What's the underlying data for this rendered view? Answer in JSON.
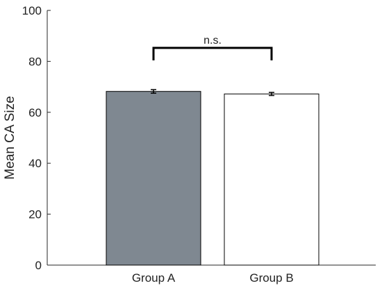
{
  "chart_data": {
    "type": "bar",
    "title": "",
    "xlabel": "",
    "ylabel": "Mean CA Size",
    "categories": [
      "Group A",
      "Group B"
    ],
    "values": [
      68.2,
      67.2
    ],
    "errors": [
      0.7,
      0.6
    ],
    "colors": [
      "#7f8891",
      "#ffffff"
    ],
    "ylim": [
      0,
      100
    ],
    "yticks": [
      0,
      20,
      40,
      60,
      80,
      100
    ],
    "grid": false,
    "legend": "none",
    "significance": {
      "label": "n.s.",
      "between": [
        0,
        1
      ]
    }
  }
}
